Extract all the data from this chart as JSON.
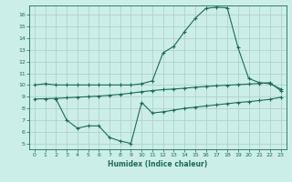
{
  "xlabel": "Humidex (Indice chaleur)",
  "bg_color": "#cceee8",
  "grid_color": "#aacccc",
  "line_color": "#1a6b5a",
  "spine_color": "#1a6b5a",
  "xlim": [
    -0.5,
    23.5
  ],
  "ylim": [
    4.5,
    16.8
  ],
  "xticks": [
    0,
    1,
    2,
    3,
    4,
    5,
    6,
    7,
    8,
    9,
    10,
    11,
    12,
    13,
    14,
    15,
    16,
    17,
    18,
    19,
    20,
    21,
    22,
    23
  ],
  "yticks": [
    5,
    6,
    7,
    8,
    9,
    10,
    11,
    12,
    13,
    14,
    15,
    16
  ],
  "line1_x": [
    0,
    1,
    2,
    3,
    4,
    5,
    6,
    7,
    8,
    9,
    10,
    11,
    12,
    13,
    14,
    15,
    16,
    17,
    18,
    19,
    20,
    21,
    22,
    23
  ],
  "line1_y": [
    10.0,
    10.1,
    10.0,
    10.0,
    10.0,
    10.0,
    10.0,
    10.0,
    10.0,
    10.0,
    10.1,
    10.35,
    12.75,
    13.3,
    14.55,
    15.7,
    16.55,
    16.65,
    16.6,
    13.2,
    10.55,
    10.2,
    10.1,
    9.65
  ],
  "line2_x": [
    0,
    1,
    2,
    3,
    4,
    5,
    6,
    7,
    8,
    9,
    10,
    11,
    12,
    13,
    14,
    15,
    16,
    17,
    18,
    19,
    20,
    21,
    22,
    23
  ],
  "line2_y": [
    8.8,
    8.82,
    8.85,
    8.9,
    8.95,
    9.0,
    9.05,
    9.12,
    9.2,
    9.3,
    9.42,
    9.52,
    9.6,
    9.65,
    9.72,
    9.8,
    9.87,
    9.93,
    9.98,
    10.03,
    10.08,
    10.14,
    10.2,
    9.5
  ],
  "line3_x": [
    2,
    3,
    4,
    5,
    6,
    7,
    8,
    9,
    10,
    11,
    12,
    13,
    14,
    15,
    16,
    17,
    18,
    19,
    20,
    21,
    22,
    23
  ],
  "line3_y": [
    8.8,
    7.0,
    6.3,
    6.5,
    6.5,
    5.5,
    5.2,
    5.0,
    8.5,
    7.6,
    7.7,
    7.85,
    8.0,
    8.1,
    8.2,
    8.3,
    8.4,
    8.5,
    8.57,
    8.67,
    8.77,
    8.95
  ],
  "marker": "+",
  "markersize": 3,
  "markeredgewidth": 0.8,
  "linewidth": 0.8,
  "tick_labelsize": 4.5,
  "xlabel_fontsize": 5.5,
  "xlabel_fontweight": "bold"
}
